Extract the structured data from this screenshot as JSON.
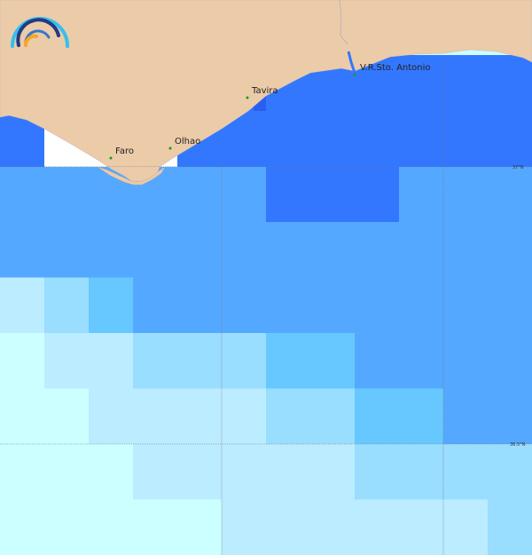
{
  "map": {
    "places": [
      {
        "name": "Faro"
      },
      {
        "name": "Olhao"
      },
      {
        "name": "Tavira"
      },
      {
        "name": "V.R.Sto. Antonio"
      }
    ],
    "grid_labels": {
      "lat_37": "37°N",
      "lat_36_5": "36.5°N"
    },
    "colors": {
      "land": "#eccba9",
      "coastal_white": "#ffffff",
      "place_marker": "#1a9a1a",
      "palette": [
        "#3377ff",
        "#55a8ff",
        "#66c8ff",
        "#99ddff",
        "#bbecff",
        "#ccffff"
      ]
    },
    "cell_levels": [
      [
        1,
        1,
        1,
        1,
        1,
        1,
        0,
        0,
        0,
        1,
        1,
        1
      ],
      [
        1,
        1,
        1,
        1,
        1,
        1,
        1,
        1,
        1,
        1,
        1,
        1
      ],
      [
        4,
        3,
        2,
        1,
        1,
        1,
        1,
        1,
        1,
        1,
        1,
        1
      ],
      [
        5,
        4,
        4,
        3,
        3,
        3,
        2,
        2,
        1,
        1,
        1,
        1
      ],
      [
        5,
        5,
        4,
        4,
        4,
        4,
        3,
        3,
        2,
        2,
        1,
        1
      ],
      [
        5,
        5,
        5,
        4,
        4,
        4,
        4,
        4,
        3,
        3,
        3,
        3
      ],
      [
        5,
        5,
        5,
        5,
        5,
        4,
        4,
        4,
        4,
        4,
        4,
        3
      ]
    ]
  }
}
